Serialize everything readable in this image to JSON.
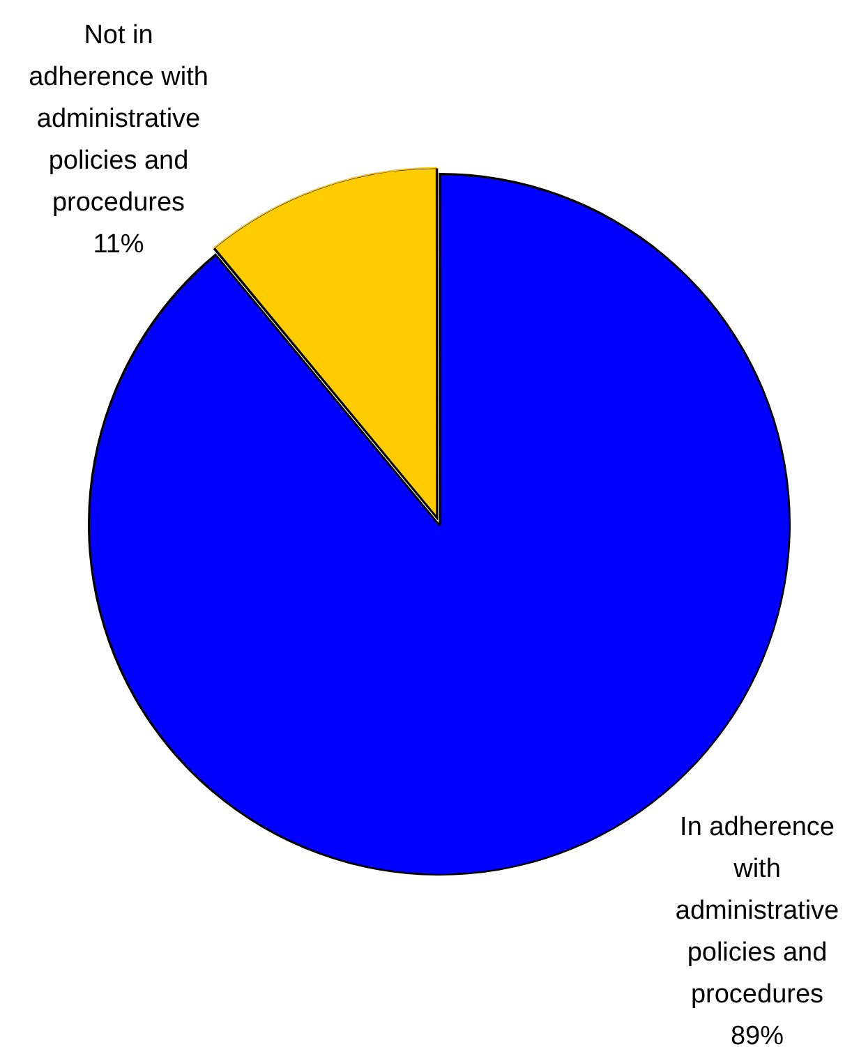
{
  "chart_data": {
    "type": "pie",
    "categories": [
      "In adherence with administrative policies and procedures",
      "Not in adherence with administrative policies and procedures"
    ],
    "values": [
      89,
      11
    ],
    "colors": [
      "#0000ff",
      "#ffcc00"
    ],
    "value_labels": [
      "89%",
      "11%"
    ],
    "legend": false
  }
}
